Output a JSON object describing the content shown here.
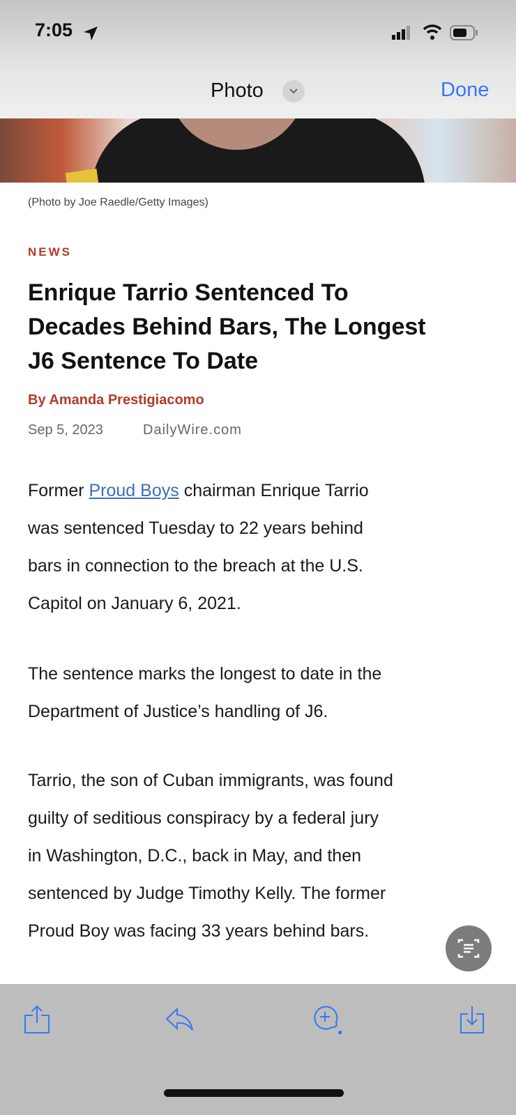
{
  "status_bar": {
    "time": "7:05"
  },
  "nav": {
    "title": "Photo",
    "done_label": "Done"
  },
  "colors": {
    "accent": "#3478f6",
    "kicker": "#b23a2a"
  },
  "article": {
    "caption": "(Photo by Joe Raedle/Getty Images)",
    "category": "NEWS",
    "title_lines": [
      "Enrique Tarrio Sentenced To",
      "Decades Behind Bars, The Longest",
      "J6 Sentence To Date"
    ],
    "byline": "By Amanda Prestigiacomo",
    "date": "Sep 5, 2023",
    "source": "DailyWire.com",
    "p1": {
      "pre": "Former ",
      "link": "Proud Boys",
      "post": " chairman Enrique Tarrio",
      "lines": [
        "was sentenced Tuesday to 22 years behind",
        "bars in connection to the breach at the U.S.",
        "Capitol on January 6, 2021."
      ]
    },
    "p2": [
      "The sentence marks the longest to date in the",
      "Department of Justice’s handling of J6."
    ],
    "p3": [
      "Tarrio, the son of Cuban immigrants, was found",
      "guilty of seditious conspiracy by a federal jury",
      "in Washington, D.C., back in May, and then",
      "sentenced by Judge Timothy Kelly. The former",
      "Proud Boy was facing 33 years behind bars."
    ]
  },
  "toolbar": {
    "icons": [
      "share-icon",
      "reply-icon",
      "markup-icon",
      "save-icon"
    ]
  },
  "live_text_button": "live-text-icon"
}
